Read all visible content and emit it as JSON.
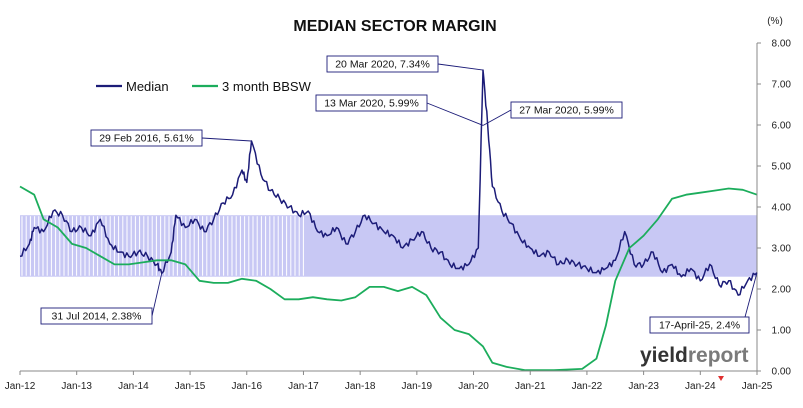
{
  "chart_data": {
    "type": "line",
    "title": "MEDIAN SECTOR MARGIN",
    "y_unit": "(%)",
    "xlabel": "",
    "ylabel": "",
    "ylim": [
      0,
      8
    ],
    "yticks": [
      "0.00",
      "1.00",
      "2.00",
      "3.00",
      "4.00",
      "5.00",
      "6.00",
      "7.00",
      "8.00"
    ],
    "xlim": [
      "2012-01",
      "2025-01"
    ],
    "xticks": [
      "Jan-12",
      "Jan-13",
      "Jan-14",
      "Jan-15",
      "Jan-16",
      "Jan-17",
      "Jan-18",
      "Jan-19",
      "Jan-20",
      "Jan-21",
      "Jan-22",
      "Jan-23",
      "Jan-24",
      "Jan-25"
    ],
    "grid": false,
    "legend_position": "top-left",
    "band": {
      "ymin": 2.3,
      "ymax": 3.8,
      "x_start": "2012-01",
      "x_end": "2025-01",
      "color": "#c8c8f4"
    },
    "series": [
      {
        "name": "Median",
        "color": "#1c1c78",
        "points": [
          [
            "2012-01",
            2.8
          ],
          [
            "2012-03",
            3.1
          ],
          [
            "2012-04",
            3.5
          ],
          [
            "2012-06",
            3.4
          ],
          [
            "2012-08",
            3.9
          ],
          [
            "2012-10",
            3.8
          ],
          [
            "2012-12",
            3.4
          ],
          [
            "2013-02",
            3.5
          ],
          [
            "2013-04",
            3.3
          ],
          [
            "2013-06",
            3.7
          ],
          [
            "2013-08",
            3.1
          ],
          [
            "2013-10",
            2.9
          ],
          [
            "2013-12",
            2.8
          ],
          [
            "2014-02",
            2.9
          ],
          [
            "2014-04",
            2.8
          ],
          [
            "2014-06",
            2.6
          ],
          [
            "2014-07",
            2.38
          ],
          [
            "2014-09",
            2.9
          ],
          [
            "2014-10",
            3.8
          ],
          [
            "2014-12",
            3.5
          ],
          [
            "2015-02",
            3.7
          ],
          [
            "2015-04",
            3.4
          ],
          [
            "2015-06",
            3.7
          ],
          [
            "2015-08",
            4.1
          ],
          [
            "2015-10",
            4.3
          ],
          [
            "2015-12",
            4.9
          ],
          [
            "2016-01",
            4.6
          ],
          [
            "2016-02",
            5.61
          ],
          [
            "2016-04",
            4.8
          ],
          [
            "2016-06",
            4.4
          ],
          [
            "2016-08",
            4.2
          ],
          [
            "2016-10",
            4.0
          ],
          [
            "2016-12",
            3.8
          ],
          [
            "2017-02",
            3.9
          ],
          [
            "2017-04",
            3.4
          ],
          [
            "2017-06",
            3.3
          ],
          [
            "2017-08",
            3.5
          ],
          [
            "2017-10",
            3.1
          ],
          [
            "2017-12",
            3.4
          ],
          [
            "2018-02",
            3.8
          ],
          [
            "2018-04",
            3.6
          ],
          [
            "2018-06",
            3.4
          ],
          [
            "2018-08",
            3.3
          ],
          [
            "2018-10",
            3.0
          ],
          [
            "2018-12",
            3.2
          ],
          [
            "2019-02",
            3.4
          ],
          [
            "2019-04",
            3.0
          ],
          [
            "2019-06",
            2.9
          ],
          [
            "2019-08",
            2.6
          ],
          [
            "2019-10",
            2.5
          ],
          [
            "2019-12",
            2.6
          ],
          [
            "2020-02",
            3.0
          ],
          [
            "2020-03",
            7.34
          ],
          [
            "2020-04",
            5.99
          ],
          [
            "2020-05",
            4.5
          ],
          [
            "2020-07",
            3.9
          ],
          [
            "2020-09",
            3.6
          ],
          [
            "2020-11",
            3.2
          ],
          [
            "2021-01",
            3.0
          ],
          [
            "2021-03",
            2.8
          ],
          [
            "2021-05",
            2.9
          ],
          [
            "2021-07",
            2.6
          ],
          [
            "2021-09",
            2.7
          ],
          [
            "2021-11",
            2.6
          ],
          [
            "2022-01",
            2.5
          ],
          [
            "2022-03",
            2.4
          ],
          [
            "2022-05",
            2.5
          ],
          [
            "2022-07",
            2.7
          ],
          [
            "2022-09",
            3.4
          ],
          [
            "2022-11",
            2.6
          ],
          [
            "2023-01",
            2.6
          ],
          [
            "2023-03",
            2.9
          ],
          [
            "2023-05",
            2.4
          ],
          [
            "2023-07",
            2.6
          ],
          [
            "2023-09",
            2.3
          ],
          [
            "2023-11",
            2.5
          ],
          [
            "2024-01",
            2.2
          ],
          [
            "2024-03",
            2.6
          ],
          [
            "2024-05",
            2.1
          ],
          [
            "2024-07",
            2.2
          ],
          [
            "2024-09",
            1.85
          ],
          [
            "2024-11",
            2.2
          ],
          [
            "2025-01",
            2.4
          ]
        ]
      },
      {
        "name": "3 month BBSW",
        "color": "#1cad5c",
        "points": [
          [
            "2012-01",
            4.5
          ],
          [
            "2012-04",
            4.3
          ],
          [
            "2012-06",
            3.7
          ],
          [
            "2012-09",
            3.5
          ],
          [
            "2012-12",
            3.1
          ],
          [
            "2013-03",
            3.0
          ],
          [
            "2013-06",
            2.8
          ],
          [
            "2013-09",
            2.6
          ],
          [
            "2013-12",
            2.6
          ],
          [
            "2014-03",
            2.65
          ],
          [
            "2014-06",
            2.7
          ],
          [
            "2014-09",
            2.7
          ],
          [
            "2014-12",
            2.6
          ],
          [
            "2015-03",
            2.2
          ],
          [
            "2015-06",
            2.15
          ],
          [
            "2015-09",
            2.15
          ],
          [
            "2015-12",
            2.25
          ],
          [
            "2016-03",
            2.2
          ],
          [
            "2016-06",
            2.0
          ],
          [
            "2016-09",
            1.75
          ],
          [
            "2016-12",
            1.75
          ],
          [
            "2017-03",
            1.8
          ],
          [
            "2017-06",
            1.75
          ],
          [
            "2017-09",
            1.72
          ],
          [
            "2017-12",
            1.8
          ],
          [
            "2018-03",
            2.05
          ],
          [
            "2018-06",
            2.05
          ],
          [
            "2018-09",
            1.95
          ],
          [
            "2018-12",
            2.05
          ],
          [
            "2019-03",
            1.85
          ],
          [
            "2019-06",
            1.3
          ],
          [
            "2019-09",
            1.0
          ],
          [
            "2019-12",
            0.9
          ],
          [
            "2020-03",
            0.6
          ],
          [
            "2020-05",
            0.2
          ],
          [
            "2020-08",
            0.1
          ],
          [
            "2020-12",
            0.02
          ],
          [
            "2021-06",
            0.02
          ],
          [
            "2021-12",
            0.05
          ],
          [
            "2022-03",
            0.3
          ],
          [
            "2022-05",
            1.1
          ],
          [
            "2022-07",
            2.2
          ],
          [
            "2022-10",
            3.0
          ],
          [
            "2023-01",
            3.3
          ],
          [
            "2023-04",
            3.7
          ],
          [
            "2023-07",
            4.2
          ],
          [
            "2023-10",
            4.3
          ],
          [
            "2024-01",
            4.35
          ],
          [
            "2024-04",
            4.4
          ],
          [
            "2024-07",
            4.45
          ],
          [
            "2024-10",
            4.42
          ],
          [
            "2025-01",
            4.3
          ]
        ]
      }
    ],
    "annotations": [
      {
        "text": "20 Mar 2020, 7.34%",
        "x": "2020-03",
        "y": 7.34
      },
      {
        "text": "13 Mar 2020, 5.99%",
        "x": "2020-03",
        "y": 5.99
      },
      {
        "text": "27 Mar 2020, 5.99%",
        "x": "2020-03",
        "y": 5.99
      },
      {
        "text": "29 Feb 2016, 5.61%",
        "x": "2016-02",
        "y": 5.61
      },
      {
        "text": "31 Jul 2014, 2.38%",
        "x": "2014-07",
        "y": 2.38
      },
      {
        "text": "17-April-25, 2.4%",
        "x": "2025-01",
        "y": 2.4
      }
    ]
  },
  "logo": {
    "part1": "yield",
    "part2": "report"
  }
}
